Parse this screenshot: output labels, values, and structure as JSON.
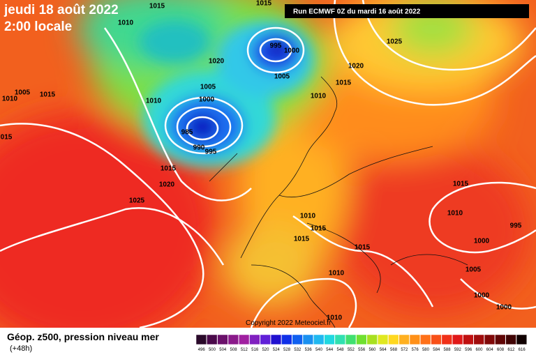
{
  "header": {
    "date": "jeudi 18 août 2022",
    "time": "2:00 locale",
    "run": "Run ECMWF 0Z du mardi 16 août 2022"
  },
  "footer": {
    "title": "Géop. z500, pression niveau mer",
    "lead": "(+48h)",
    "copyright": "Copyright 2022 Meteociel.fr"
  },
  "isobar_labels": [
    "1010",
    "1005",
    "1015",
    "015",
    "1010",
    "1015",
    "1015",
    "1020",
    "1005",
    "1010",
    "1000",
    "985",
    "990",
    "995",
    "995",
    "1000",
    "1005",
    "1010",
    "1015",
    "1020",
    "1025",
    "1015",
    "1020",
    "1025",
    "1010",
    "1015",
    "1015",
    "1015",
    "1010",
    "1015",
    "1010",
    "995",
    "1000",
    "1005",
    "1000",
    "1000",
    "1010"
  ],
  "scale": [
    {
      "label": "496",
      "color": "#2a0a2a"
    },
    {
      "label": "500",
      "color": "#4a0a4a"
    },
    {
      "label": "504",
      "color": "#6a106a"
    },
    {
      "label": "508",
      "color": "#8a1a8a"
    },
    {
      "label": "512",
      "color": "#a020a0"
    },
    {
      "label": "516",
      "color": "#8020c0"
    },
    {
      "label": "520",
      "color": "#6020d8"
    },
    {
      "label": "524",
      "color": "#2010d0"
    },
    {
      "label": "528",
      "color": "#1030e8"
    },
    {
      "label": "532",
      "color": "#1060f0"
    },
    {
      "label": "536",
      "color": "#1a90f0"
    },
    {
      "label": "540",
      "color": "#20b8f0"
    },
    {
      "label": "544",
      "color": "#20d8e0"
    },
    {
      "label": "548",
      "color": "#30e0b0"
    },
    {
      "label": "552",
      "color": "#40e070"
    },
    {
      "label": "556",
      "color": "#70e030"
    },
    {
      "label": "560",
      "color": "#a8e020"
    },
    {
      "label": "564",
      "color": "#e0e820"
    },
    {
      "label": "568",
      "color": "#ffd820"
    },
    {
      "label": "572",
      "color": "#ffb020"
    },
    {
      "label": "576",
      "color": "#ff9018"
    },
    {
      "label": "580",
      "color": "#ff7018"
    },
    {
      "label": "584",
      "color": "#f85018"
    },
    {
      "label": "588",
      "color": "#f03018"
    },
    {
      "label": "592",
      "color": "#e01818"
    },
    {
      "label": "596",
      "color": "#c01010"
    },
    {
      "label": "600",
      "color": "#a00c0c"
    },
    {
      "label": "604",
      "color": "#800808"
    },
    {
      "label": "608",
      "color": "#600606"
    },
    {
      "label": "612",
      "color": "#400404"
    },
    {
      "label": "616",
      "color": "#100000"
    }
  ]
}
